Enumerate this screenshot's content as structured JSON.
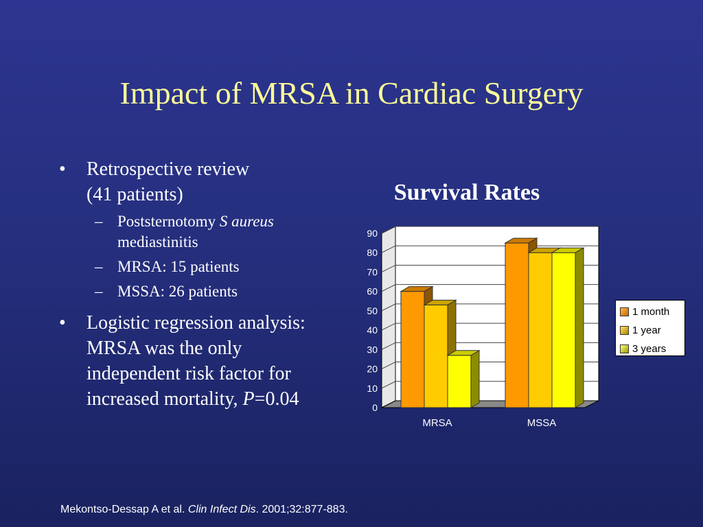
{
  "slide": {
    "title": "Impact of MRSA in Cardiac Surgery"
  },
  "bullets": {
    "b1": {
      "line1": "Retrospective review",
      "line2": "(41 patients)",
      "subs": [
        {
          "text_pre": "Poststernotomy ",
          "text_italic": "S aureus",
          "text_post": "mediastinitis"
        },
        {
          "text": "MRSA: 15 patients"
        },
        {
          "text": "MSSA: 26 patients"
        }
      ]
    },
    "b2": {
      "text": "Logistic regression analysis: MRSA was the only independent risk factor for increased mortality, ",
      "p_italic": "P",
      "p_value": "=0.04"
    },
    "bullet_marker": "•",
    "dash_marker": "–"
  },
  "chart_data": {
    "type": "bar",
    "title": "Survival Rates",
    "categories": [
      "MRSA",
      "MSSA"
    ],
    "series": [
      {
        "name": "1 month",
        "values": [
          60,
          85
        ],
        "color": "#ff9900"
      },
      {
        "name": "1 year",
        "values": [
          53,
          80
        ],
        "color": "#ffcc00"
      },
      {
        "name": "3 years",
        "values": [
          27,
          80
        ],
        "color": "#ffff00"
      }
    ],
    "yticks": [
      0,
      10,
      20,
      30,
      40,
      50,
      60,
      70,
      80,
      90
    ],
    "ylim": [
      0,
      90
    ],
    "grid": true,
    "legend_position": "right",
    "style": "3d"
  },
  "citation": {
    "authors": "Mekontso-Dessap A et al. ",
    "journal": "Clin Infect Dis",
    "details": ". 2001;32:877-883."
  }
}
